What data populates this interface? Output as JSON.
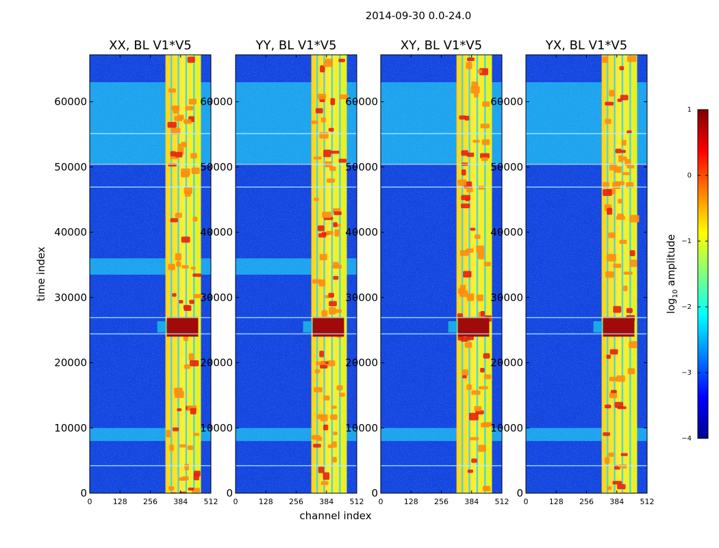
{
  "figure": {
    "suptitle": "2014-09-30 0.0-24.0",
    "xlabel": "channel index",
    "ylabel": "time index"
  },
  "chart_data": [
    {
      "type": "heatmap",
      "title": "XX, BL V1*V5",
      "xlim": [
        0,
        512
      ],
      "ylim": [
        0,
        67200
      ],
      "xticks": [
        0,
        128,
        256,
        384,
        512
      ],
      "yticks": [
        0,
        10000,
        20000,
        30000,
        40000,
        50000,
        60000
      ],
      "rfi_band_channels": [
        320,
        470
      ],
      "strong_flare_time_range": [
        24000,
        27000
      ],
      "elevated_time_ranges": [
        [
          50500,
          63000
        ],
        [
          33500,
          36000
        ],
        [
          8000,
          10000
        ]
      ]
    },
    {
      "type": "heatmap",
      "title": "YY, BL V1*V5",
      "xlim": [
        0,
        512
      ],
      "ylim": [
        0,
        67200
      ],
      "xticks": [
        0,
        128,
        256,
        384,
        512
      ],
      "yticks": [
        0,
        10000,
        20000,
        30000,
        40000,
        50000,
        60000
      ],
      "rfi_band_channels": [
        320,
        470
      ],
      "strong_flare_time_range": [
        24000,
        27000
      ],
      "elevated_time_ranges": [
        [
          50500,
          63000
        ],
        [
          33500,
          36000
        ],
        [
          8000,
          10000
        ]
      ]
    },
    {
      "type": "heatmap",
      "title": "XY, BL V1*V5",
      "xlim": [
        0,
        512
      ],
      "ylim": [
        0,
        67200
      ],
      "xticks": [
        0,
        128,
        256,
        384,
        512
      ],
      "yticks": [
        0,
        10000,
        20000,
        30000,
        40000,
        50000,
        60000
      ],
      "rfi_band_channels": [
        320,
        470
      ],
      "strong_flare_time_range": [
        24000,
        27000
      ],
      "elevated_time_ranges": [
        [
          50500,
          63000
        ],
        [
          8000,
          10000
        ]
      ]
    },
    {
      "type": "heatmap",
      "title": "YX, BL V1*V5",
      "xlim": [
        0,
        512
      ],
      "ylim": [
        0,
        67200
      ],
      "xticks": [
        0,
        128,
        256,
        384,
        512
      ],
      "yticks": [
        0,
        10000,
        20000,
        30000,
        40000,
        50000,
        60000
      ],
      "rfi_band_channels": [
        320,
        470
      ],
      "strong_flare_time_range": [
        24000,
        27000
      ],
      "elevated_time_ranges": [
        [
          50500,
          63000
        ],
        [
          8000,
          10000
        ]
      ]
    }
  ],
  "colorbar": {
    "label": "log",
    "label_sub": "10",
    "label_rest": " amplitude",
    "range": [
      -4,
      1
    ],
    "tick_values": [
      1,
      0,
      -1,
      -2,
      -3,
      -4
    ],
    "tick_labels": [
      "1",
      "0",
      "−1",
      "−2",
      "−3",
      "−4"
    ],
    "colors": [
      "#00008f",
      "#0000ff",
      "#0080ff",
      "#00ffff",
      "#80ff80",
      "#ffff00",
      "#ff8000",
      "#ff0000",
      "#800000"
    ]
  }
}
